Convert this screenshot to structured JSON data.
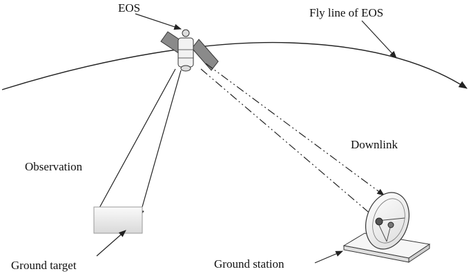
{
  "labels": {
    "eos": "EOS",
    "fly_line": "Fly line of EOS",
    "downlink": "Downlink",
    "observation": "Observation",
    "ground_target": "Ground target",
    "ground_station": "Ground station"
  },
  "colors": {
    "line": "#222222",
    "panel": "#8a8a8a",
    "target_fill": "#eeeeee"
  }
}
